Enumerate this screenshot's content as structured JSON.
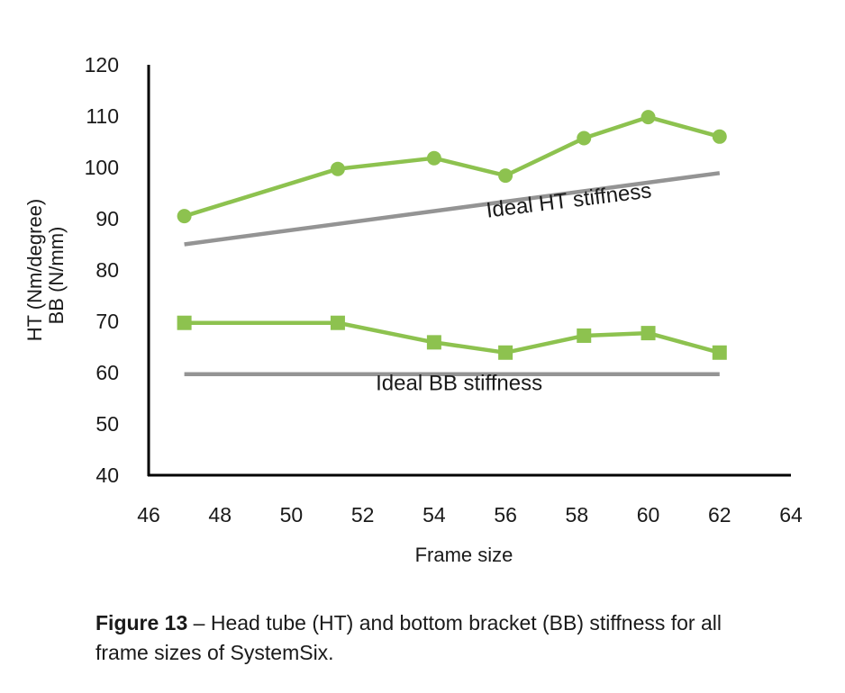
{
  "chart_data": {
    "type": "line",
    "xlabel": "Frame size",
    "ylabel_lines": [
      "HT (Nm/degree)",
      "BB (N/mm)"
    ],
    "xlim": [
      46,
      64
    ],
    "ylim": [
      40,
      120
    ],
    "xticks": [
      46,
      48,
      50,
      52,
      54,
      56,
      58,
      60,
      62,
      64
    ],
    "yticks": [
      40,
      50,
      60,
      70,
      80,
      90,
      100,
      110,
      120
    ],
    "grid": false,
    "series": [
      {
        "marker": "circle",
        "color": "#8dc24f",
        "points": [
          [
            47.0,
            90.5
          ],
          [
            51.3,
            99.7
          ],
          [
            54.0,
            101.8
          ],
          [
            56.0,
            98.4
          ],
          [
            58.2,
            105.7
          ],
          [
            60.0,
            109.8
          ],
          [
            62.0,
            106.0
          ]
        ]
      },
      {
        "marker": "square",
        "color": "#8dc24f",
        "points": [
          [
            47.0,
            69.7
          ],
          [
            51.3,
            69.7
          ],
          [
            54.0,
            65.9
          ],
          [
            56.0,
            63.9
          ],
          [
            58.2,
            67.2
          ],
          [
            60.0,
            67.7
          ],
          [
            62.0,
            63.9
          ]
        ]
      },
      {
        "marker": "none",
        "color": "#949494",
        "points": [
          [
            47.0,
            85.0
          ],
          [
            62.0,
            98.9
          ]
        ]
      },
      {
        "marker": "none",
        "color": "#949494",
        "points": [
          [
            47.0,
            59.7
          ],
          [
            62.0,
            59.7
          ]
        ]
      }
    ],
    "annotations": [
      {
        "text": "Ideal HT stiffness",
        "x": 57.8,
        "y": 92.2,
        "rotate": -7
      },
      {
        "text": "Ideal BB stiffness",
        "x": 54.7,
        "y": 56.6,
        "rotate": 0
      }
    ]
  },
  "caption": {
    "label": "Figure 13",
    "text": " – Head tube (HT) and bottom bracket (BB) stiffness for all frame sizes of SystemSix."
  }
}
